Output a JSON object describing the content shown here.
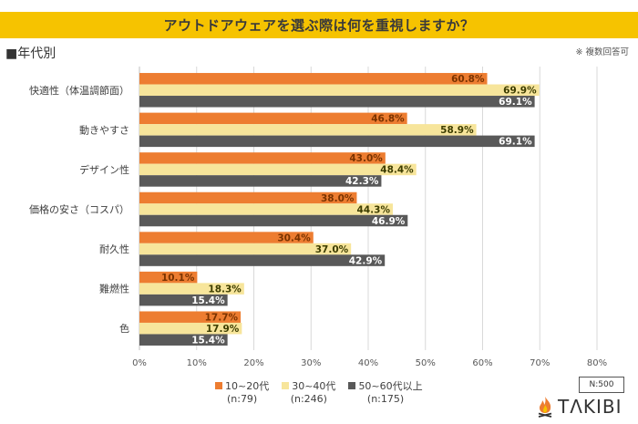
{
  "header": {
    "title": "アウトドアウェアを選ぶ際は何を重視しますか？",
    "section_label": "■年代別",
    "note": "※ 複数回答可"
  },
  "colors": {
    "title_bar": "#f6c300",
    "series_1": "#ed7d31",
    "series_2": "#f7e59b",
    "series_3": "#595959",
    "grid": "#d9d9d9"
  },
  "chart_data": {
    "type": "bar",
    "orientation": "horizontal",
    "title": "アウトドアウェアを選ぶ際は何を重視しますか？",
    "xlabel": "",
    "ylabel": "",
    "xlim": [
      0,
      80
    ],
    "x_ticks": [
      "0%",
      "10%",
      "20%",
      "30%",
      "40%",
      "50%",
      "60%",
      "70%",
      "80%"
    ],
    "grid": true,
    "legend_position": "bottom",
    "categories": [
      "快適性（体温調節面）",
      "動きやすさ",
      "デザイン性",
      "価格の安さ（コスパ）",
      "耐久性",
      "難燃性",
      "色"
    ],
    "series": [
      {
        "name": "10~20代",
        "n": "(n:79)",
        "values": [
          60.8,
          46.8,
          43.0,
          38.0,
          30.4,
          10.1,
          17.7
        ]
      },
      {
        "name": "30~40代",
        "n": "(n:246)",
        "values": [
          69.9,
          58.9,
          48.4,
          44.3,
          37.0,
          18.3,
          17.9
        ]
      },
      {
        "name": "50~60代以上",
        "n": "(n:175)",
        "values": [
          69.1,
          69.1,
          42.3,
          46.9,
          42.9,
          15.4,
          15.4
        ]
      }
    ]
  },
  "footer": {
    "sample_size": "N:500",
    "logo_text": "TΛKIBI",
    "logo_icon": "campfire-icon"
  }
}
